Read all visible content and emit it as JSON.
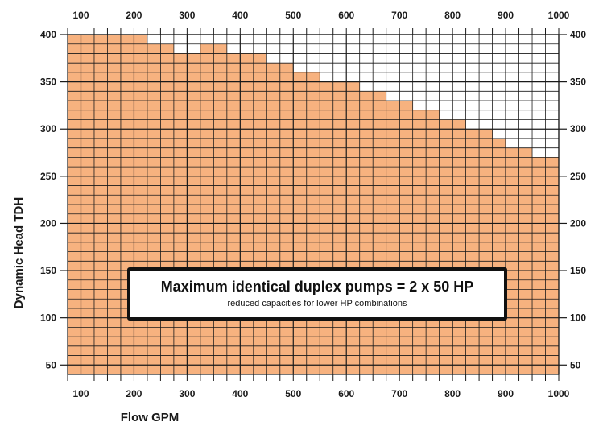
{
  "chart_data": {
    "type": "area",
    "xlabel": "Flow GPM",
    "ylabel": "Dynamic Head TDH",
    "xlim": [
      75,
      1000
    ],
    "ylim": [
      40,
      400
    ],
    "x_ticks": [
      100,
      200,
      300,
      400,
      500,
      600,
      700,
      800,
      900,
      1000
    ],
    "y_ticks": [
      50,
      100,
      150,
      200,
      250,
      300,
      350,
      400
    ],
    "grid": true,
    "fill_color": "#f7b27f",
    "grid_color": "#1a1a1a",
    "x_minor_step": 25,
    "y_minor_step": 10,
    "series": [
      {
        "x": [
          75,
          225,
          275,
          325,
          375,
          450,
          500,
          550,
          625,
          675,
          725,
          775,
          825,
          875,
          900,
          950,
          975,
          1000
        ],
        "y": [
          400,
          390,
          380,
          390,
          380,
          370,
          360,
          350,
          340,
          330,
          320,
          310,
          300,
          290,
          280,
          270,
          270,
          270
        ]
      }
    ],
    "annotation": {
      "title": "Maximum identical duplex pumps = 2 x 50 HP",
      "subtitle": "reduced capacities for lower HP combinations"
    }
  }
}
